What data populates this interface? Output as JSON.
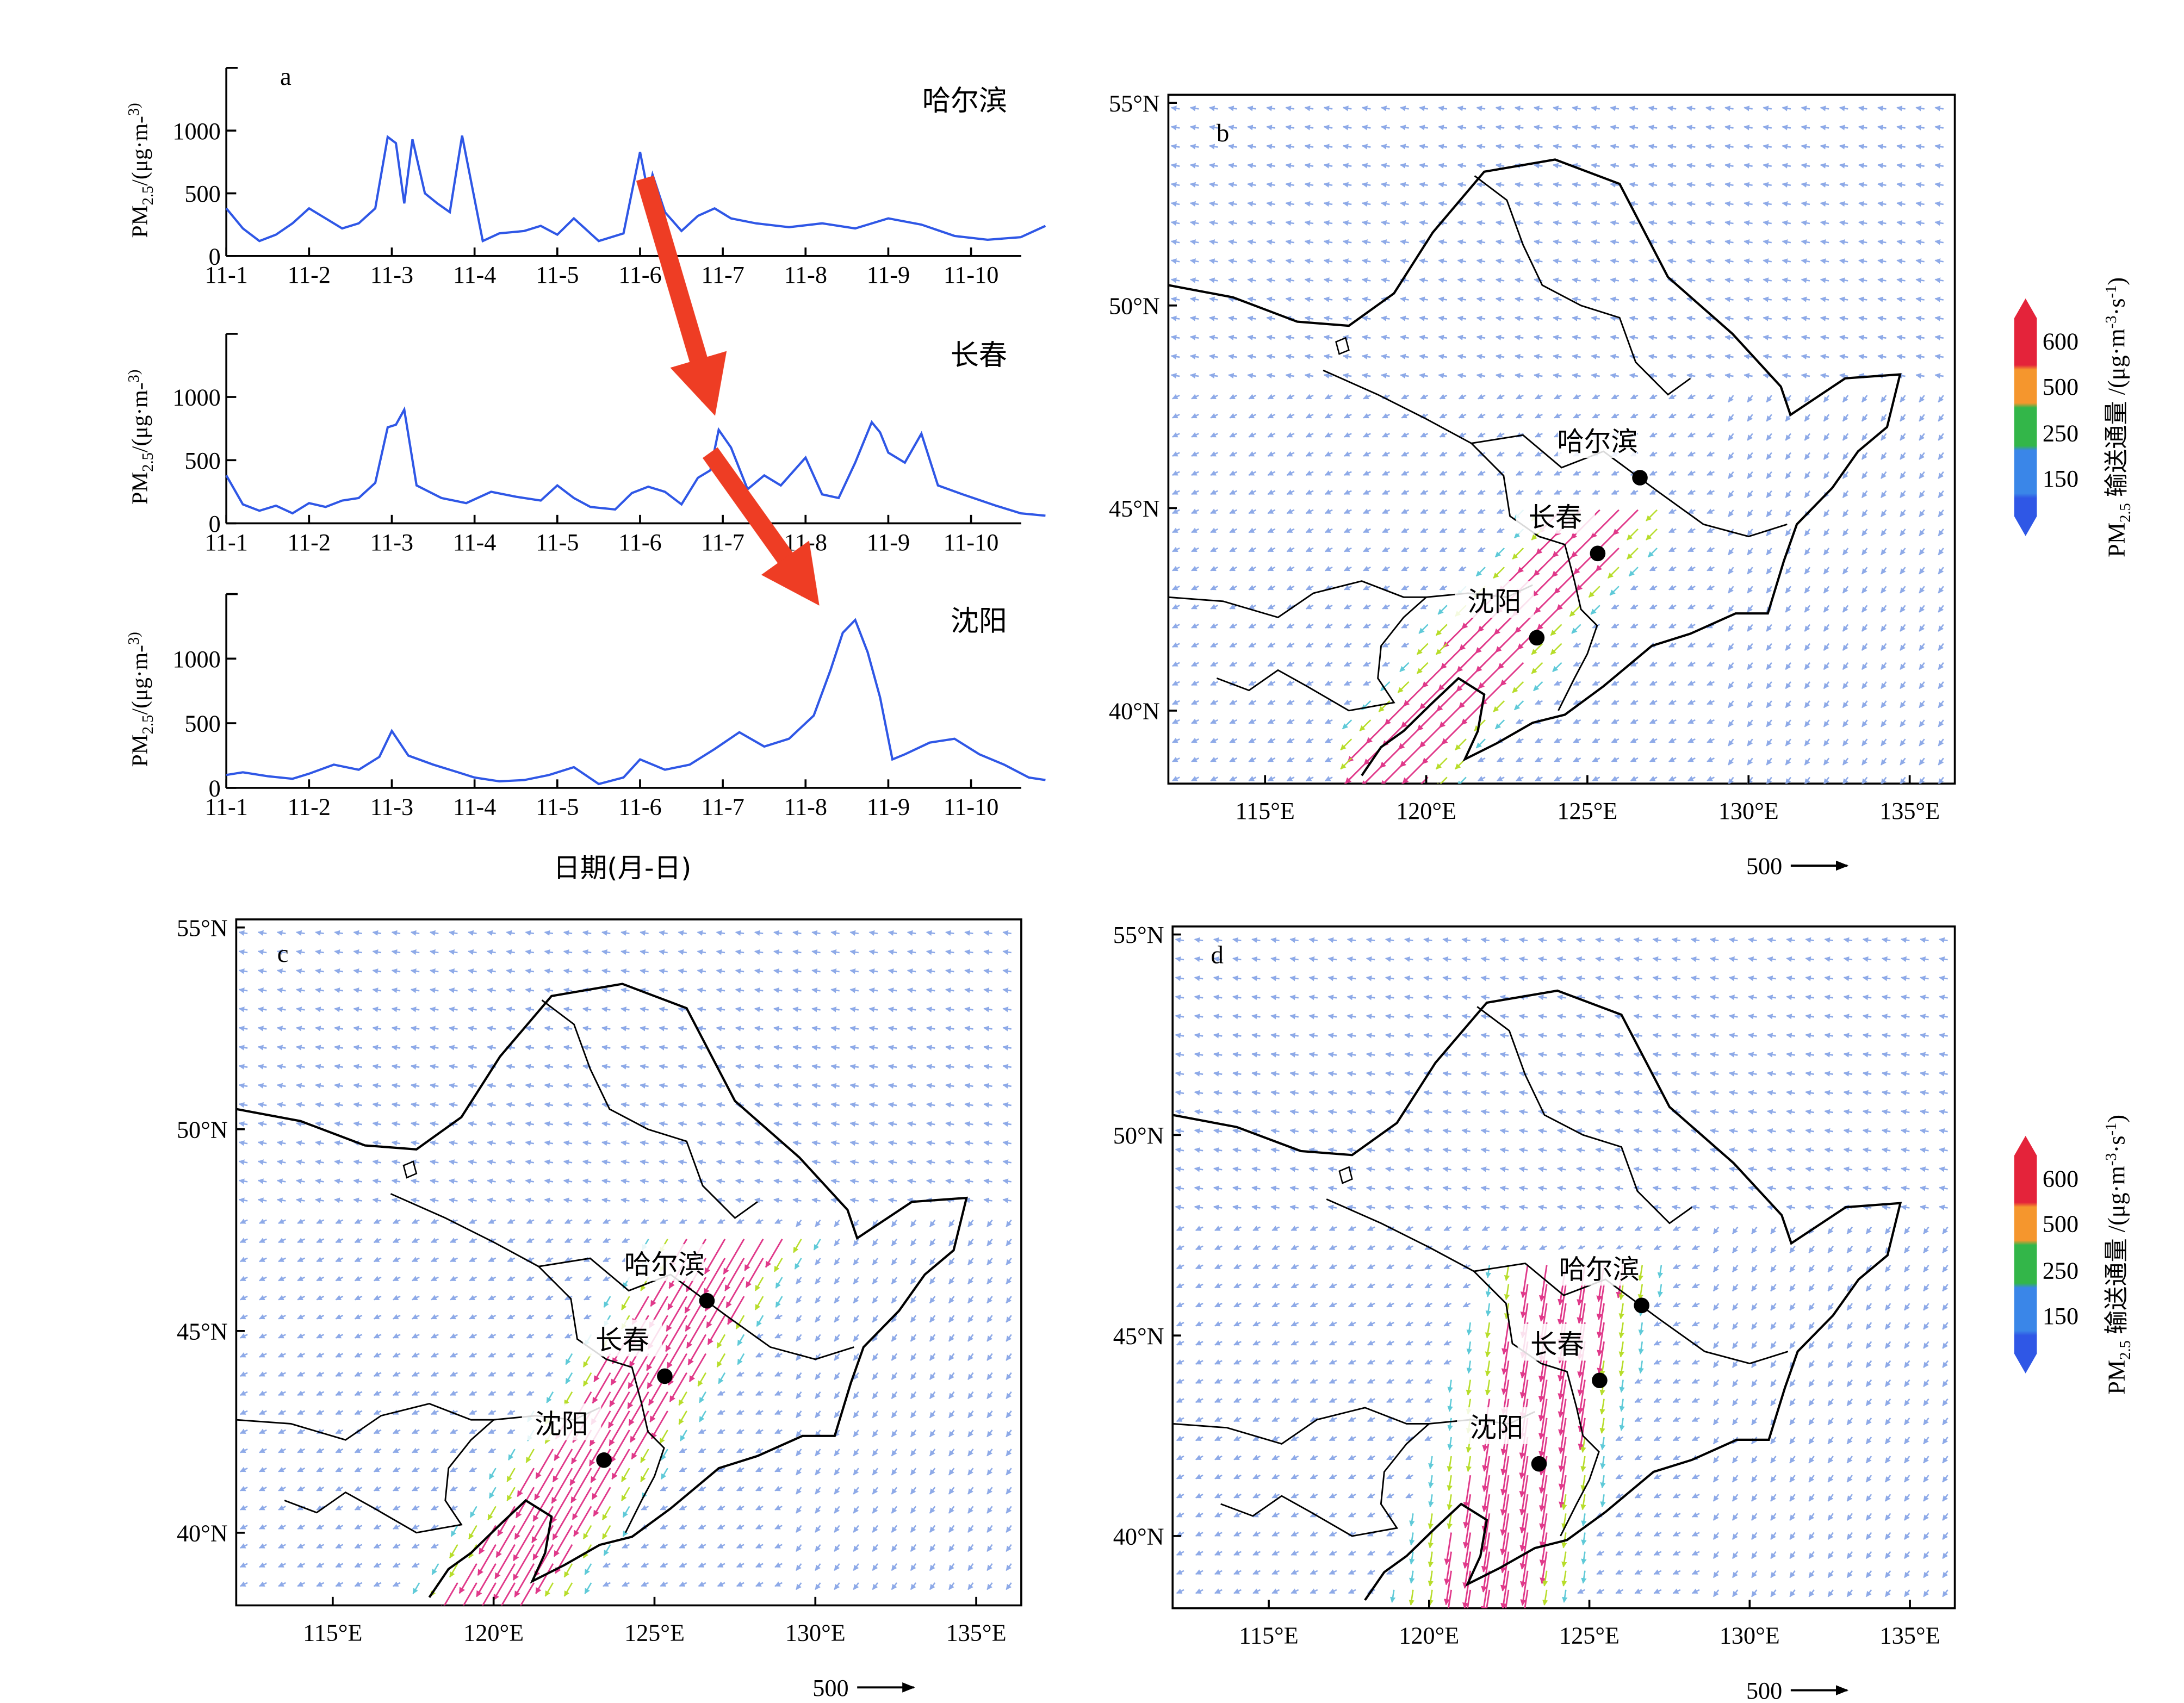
{
  "chart_data": [
    {
      "type": "line",
      "panel": "a",
      "title": "哈尔滨",
      "ylabel": "PM2.5/(μg·m-3)",
      "xlabel": "",
      "ylim": [
        0,
        1500
      ],
      "yticks": [
        0,
        500,
        1000
      ],
      "x_ticks": [
        "11-1",
        "11-2",
        "11-3",
        "11-4",
        "11-5",
        "11-6",
        "11-7",
        "11-8",
        "11-9",
        "11-10"
      ],
      "x": [
        1,
        1.2,
        1.4,
        1.6,
        1.8,
        2,
        2.2,
        2.4,
        2.6,
        2.8,
        2.95,
        3.05,
        3.15,
        3.25,
        3.4,
        3.55,
        3.7,
        3.85,
        3.95,
        4.1,
        4.3,
        4.6,
        4.8,
        5,
        5.2,
        5.5,
        5.8,
        6,
        6.1,
        6.15,
        6.3,
        6.5,
        6.7,
        6.9,
        7.1,
        7.4,
        7.8,
        8.2,
        8.6,
        9,
        9.4,
        9.8,
        10.2,
        10.6,
        10.9
      ],
      "values": [
        380,
        220,
        120,
        170,
        260,
        380,
        300,
        220,
        260,
        380,
        950,
        900,
        420,
        930,
        500,
        420,
        350,
        960,
        620,
        120,
        180,
        200,
        240,
        170,
        300,
        120,
        180,
        830,
        500,
        650,
        350,
        200,
        320,
        380,
        300,
        260,
        230,
        260,
        220,
        300,
        250,
        160,
        130,
        150,
        240
      ]
    },
    {
      "type": "line",
      "panel": "a",
      "title": "长春",
      "ylabel": "PM2.5/(μg·m-3)",
      "xlabel": "",
      "ylim": [
        0,
        1500
      ],
      "yticks": [
        0,
        500,
        1000
      ],
      "x_ticks": [
        "11-1",
        "11-2",
        "11-3",
        "11-4",
        "11-5",
        "11-6",
        "11-7",
        "11-8",
        "11-9",
        "11-10"
      ],
      "x": [
        1,
        1.2,
        1.4,
        1.6,
        1.8,
        2,
        2.2,
        2.4,
        2.6,
        2.8,
        2.95,
        3.05,
        3.15,
        3.3,
        3.6,
        3.9,
        4.2,
        4.5,
        4.8,
        5,
        5.2,
        5.4,
        5.7,
        5.9,
        6.1,
        6.3,
        6.5,
        6.7,
        6.85,
        6.95,
        7.1,
        7.3,
        7.5,
        7.7,
        8,
        8.2,
        8.4,
        8.6,
        8.8,
        8.9,
        9,
        9.2,
        9.4,
        9.6,
        9.9,
        10.3,
        10.6,
        10.9
      ],
      "values": [
        380,
        150,
        100,
        140,
        80,
        160,
        130,
        180,
        200,
        320,
        760,
        780,
        900,
        300,
        200,
        160,
        250,
        210,
        180,
        300,
        200,
        130,
        110,
        240,
        290,
        250,
        150,
        360,
        420,
        740,
        600,
        270,
        380,
        300,
        520,
        230,
        200,
        480,
        800,
        720,
        560,
        480,
        710,
        300,
        230,
        140,
        80,
        60
      ]
    },
    {
      "type": "line",
      "panel": "a",
      "title": "沈阳",
      "ylabel": "PM2.5/(μg·m-3)",
      "xlabel": "日期(月-日)",
      "ylim": [
        0,
        1500
      ],
      "yticks": [
        0,
        500,
        1000
      ],
      "x_ticks": [
        "11-1",
        "11-2",
        "11-3",
        "11-4",
        "11-5",
        "11-6",
        "11-7",
        "11-8",
        "11-9",
        "11-10"
      ],
      "x": [
        1,
        1.2,
        1.5,
        1.8,
        2,
        2.3,
        2.6,
        2.85,
        3,
        3.2,
        3.5,
        3.8,
        4,
        4.3,
        4.6,
        4.9,
        5.2,
        5.5,
        5.8,
        6,
        6.3,
        6.6,
        6.9,
        7.2,
        7.5,
        7.8,
        8.1,
        8.3,
        8.45,
        8.6,
        8.75,
        8.9,
        9.05,
        9.2,
        9.5,
        9.8,
        10.1,
        10.4,
        10.7,
        10.9
      ],
      "values": [
        100,
        120,
        90,
        70,
        110,
        180,
        140,
        240,
        440,
        250,
        180,
        120,
        80,
        50,
        60,
        100,
        160,
        30,
        80,
        220,
        140,
        180,
        300,
        430,
        320,
        380,
        560,
        910,
        1200,
        1300,
        1050,
        700,
        220,
        260,
        350,
        380,
        260,
        180,
        80,
        60
      ]
    }
  ],
  "panel_a": {
    "label": "a",
    "stations": [
      "哈尔滨",
      "长春",
      "沈阳"
    ],
    "ylabel": "PM2.5/(μg·m-3)",
    "xlabel": "日期(月-日)",
    "x_ticks": [
      "11-1",
      "11-2",
      "11-3",
      "11-4",
      "11-5",
      "11-6",
      "11-7",
      "11-8",
      "11-9",
      "11-10"
    ],
    "y_ticks": [
      "0",
      "500",
      "1000"
    ]
  },
  "maps": {
    "lat_labels": [
      "55°N",
      "50°N",
      "45°N",
      "40°N"
    ],
    "lon_labels": [
      "115°E",
      "120°E",
      "125°E",
      "130°E",
      "135°E"
    ],
    "cities": [
      {
        "name": "哈尔滨"
      },
      {
        "name": "长春"
      },
      {
        "name": "沈阳"
      }
    ],
    "scale_label": "500",
    "panels": [
      {
        "label": "b"
      },
      {
        "label": "c"
      },
      {
        "label": "d"
      }
    ]
  },
  "legend": {
    "title": "PM2.5 输送通量 /(μg·m-3·s-1)",
    "levels": [
      "600",
      "500",
      "250",
      "150"
    ],
    "colors": {
      "red": "#e4233a",
      "orange": "#f5962d",
      "green": "#33b649",
      "blue": "#3a86e8",
      "dark_blue": "#2f57e6",
      "magenta": "#e0398a",
      "yellowgreen": "#b7dd2a",
      "cyan": "#5fcad8",
      "light_blue": "#8eaae8"
    }
  }
}
